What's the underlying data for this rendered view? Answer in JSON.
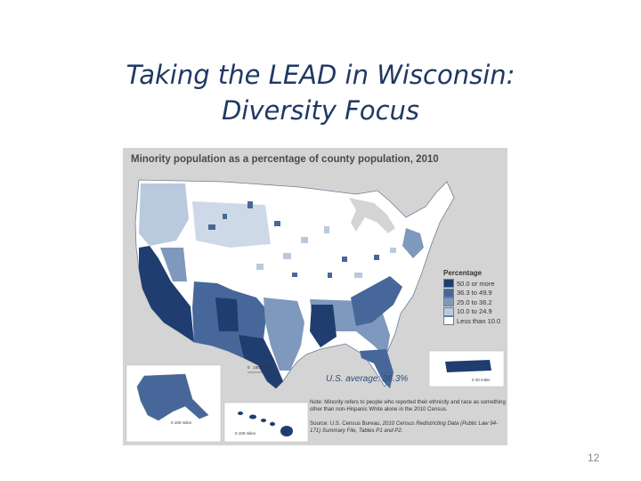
{
  "slide": {
    "title_line1": "Taking the LEAD in Wisconsin:",
    "title_line2": "Diversity Focus",
    "page_number": "12"
  },
  "map": {
    "heading": "Minority population as a percentage of county population, 2010",
    "us_average": "U.S. average: 36.3%",
    "legend": {
      "title": "Percentage",
      "items": [
        {
          "label": "50.0 or more",
          "color": "#1f3d6e"
        },
        {
          "label": "36.3 to 49.9",
          "color": "#47679a"
        },
        {
          "label": "25.0 to 36.2",
          "color": "#7f98bd"
        },
        {
          "label": "10.0 to 24.9",
          "color": "#b9c9de"
        },
        {
          "label": "Less than 10.0",
          "color": "#ffffff"
        }
      ]
    },
    "scale_main": {
      "zero": "0",
      "distance": "100 miles"
    },
    "scale_alaska": {
      "zero": "0",
      "distance": "100 miles"
    },
    "scale_hawaii": {
      "zero": "0",
      "distance": "100 miles"
    },
    "scale_pr": {
      "zero": "0",
      "distance": "20 miles"
    },
    "note": "Note: Minority refers to people who reported their ethnicity and race as something other than non-Hispanic White alone in the 2010 Census.",
    "source_prefix": "Source: U.S. Census Bureau, ",
    "source_title": "2010 Census Redistricting Data",
    "source_suffix": "(Public Law 94-171) Summary File, Tables P1 and P2.",
    "colors": {
      "panel_background": "#d4d4d4",
      "title_color": "#1f3864"
    }
  }
}
